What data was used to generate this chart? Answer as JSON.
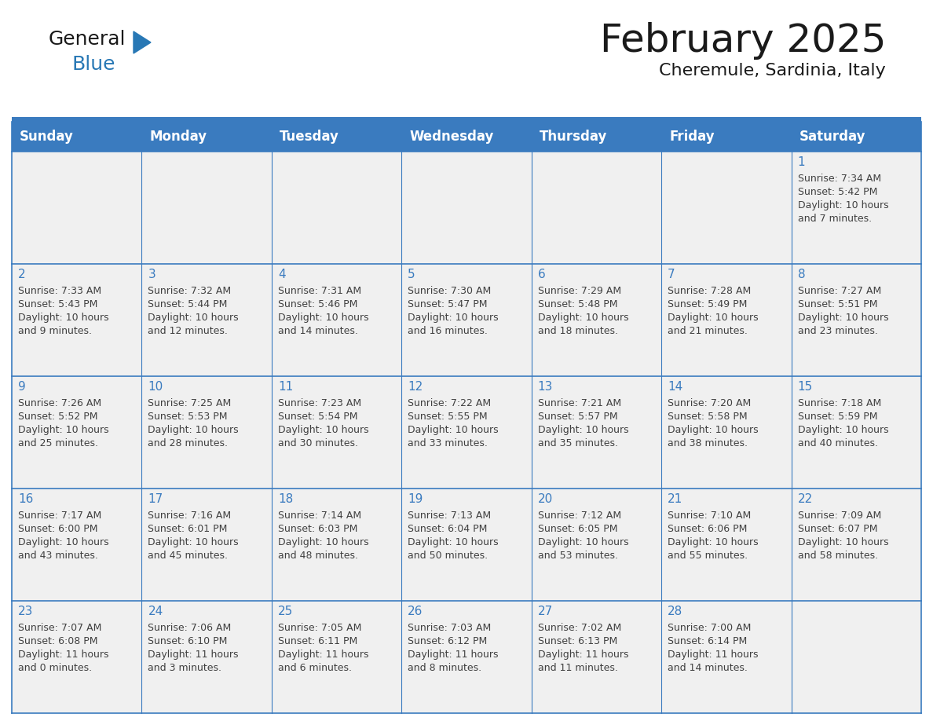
{
  "title": "February 2025",
  "subtitle": "Cheremule, Sardinia, Italy",
  "header_bg": "#3a7bbf",
  "header_text_color": "#ffffff",
  "day_names": [
    "Sunday",
    "Monday",
    "Tuesday",
    "Wednesday",
    "Thursday",
    "Friday",
    "Saturday"
  ],
  "cell_bg": "#f0f0f0",
  "cell_border_color": "#3a7bbf",
  "day_number_color": "#3a7bbf",
  "info_text_color": "#404040",
  "logo_color_general": "#1a1a1a",
  "logo_color_blue": "#2878b5",
  "calendar_data": [
    [
      null,
      null,
      null,
      null,
      null,
      null,
      {
        "day": 1,
        "sunrise": "7:34 AM",
        "sunset": "5:42 PM",
        "daylight": "10 hours and 7 minutes."
      }
    ],
    [
      {
        "day": 2,
        "sunrise": "7:33 AM",
        "sunset": "5:43 PM",
        "daylight": "10 hours and 9 minutes."
      },
      {
        "day": 3,
        "sunrise": "7:32 AM",
        "sunset": "5:44 PM",
        "daylight": "10 hours and 12 minutes."
      },
      {
        "day": 4,
        "sunrise": "7:31 AM",
        "sunset": "5:46 PM",
        "daylight": "10 hours and 14 minutes."
      },
      {
        "day": 5,
        "sunrise": "7:30 AM",
        "sunset": "5:47 PM",
        "daylight": "10 hours and 16 minutes."
      },
      {
        "day": 6,
        "sunrise": "7:29 AM",
        "sunset": "5:48 PM",
        "daylight": "10 hours and 18 minutes."
      },
      {
        "day": 7,
        "sunrise": "7:28 AM",
        "sunset": "5:49 PM",
        "daylight": "10 hours and 21 minutes."
      },
      {
        "day": 8,
        "sunrise": "7:27 AM",
        "sunset": "5:51 PM",
        "daylight": "10 hours and 23 minutes."
      }
    ],
    [
      {
        "day": 9,
        "sunrise": "7:26 AM",
        "sunset": "5:52 PM",
        "daylight": "10 hours and 25 minutes."
      },
      {
        "day": 10,
        "sunrise": "7:25 AM",
        "sunset": "5:53 PM",
        "daylight": "10 hours and 28 minutes."
      },
      {
        "day": 11,
        "sunrise": "7:23 AM",
        "sunset": "5:54 PM",
        "daylight": "10 hours and 30 minutes."
      },
      {
        "day": 12,
        "sunrise": "7:22 AM",
        "sunset": "5:55 PM",
        "daylight": "10 hours and 33 minutes."
      },
      {
        "day": 13,
        "sunrise": "7:21 AM",
        "sunset": "5:57 PM",
        "daylight": "10 hours and 35 minutes."
      },
      {
        "day": 14,
        "sunrise": "7:20 AM",
        "sunset": "5:58 PM",
        "daylight": "10 hours and 38 minutes."
      },
      {
        "day": 15,
        "sunrise": "7:18 AM",
        "sunset": "5:59 PM",
        "daylight": "10 hours and 40 minutes."
      }
    ],
    [
      {
        "day": 16,
        "sunrise": "7:17 AM",
        "sunset": "6:00 PM",
        "daylight": "10 hours and 43 minutes."
      },
      {
        "day": 17,
        "sunrise": "7:16 AM",
        "sunset": "6:01 PM",
        "daylight": "10 hours and 45 minutes."
      },
      {
        "day": 18,
        "sunrise": "7:14 AM",
        "sunset": "6:03 PM",
        "daylight": "10 hours and 48 minutes."
      },
      {
        "day": 19,
        "sunrise": "7:13 AM",
        "sunset": "6:04 PM",
        "daylight": "10 hours and 50 minutes."
      },
      {
        "day": 20,
        "sunrise": "7:12 AM",
        "sunset": "6:05 PM",
        "daylight": "10 hours and 53 minutes."
      },
      {
        "day": 21,
        "sunrise": "7:10 AM",
        "sunset": "6:06 PM",
        "daylight": "10 hours and 55 minutes."
      },
      {
        "day": 22,
        "sunrise": "7:09 AM",
        "sunset": "6:07 PM",
        "daylight": "10 hours and 58 minutes."
      }
    ],
    [
      {
        "day": 23,
        "sunrise": "7:07 AM",
        "sunset": "6:08 PM",
        "daylight": "11 hours and 0 minutes."
      },
      {
        "day": 24,
        "sunrise": "7:06 AM",
        "sunset": "6:10 PM",
        "daylight": "11 hours and 3 minutes."
      },
      {
        "day": 25,
        "sunrise": "7:05 AM",
        "sunset": "6:11 PM",
        "daylight": "11 hours and 6 minutes."
      },
      {
        "day": 26,
        "sunrise": "7:03 AM",
        "sunset": "6:12 PM",
        "daylight": "11 hours and 8 minutes."
      },
      {
        "day": 27,
        "sunrise": "7:02 AM",
        "sunset": "6:13 PM",
        "daylight": "11 hours and 11 minutes."
      },
      {
        "day": 28,
        "sunrise": "7:00 AM",
        "sunset": "6:14 PM",
        "daylight": "11 hours and 14 minutes."
      },
      null
    ]
  ]
}
